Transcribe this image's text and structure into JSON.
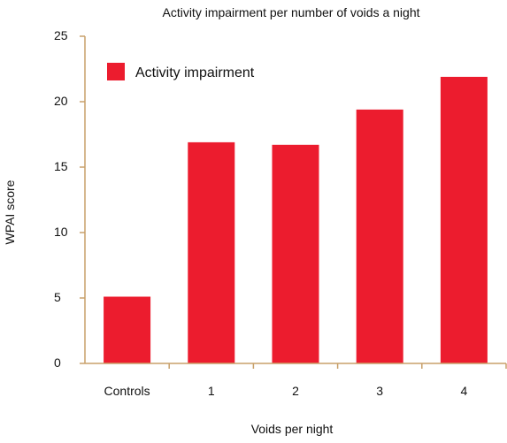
{
  "chart_data": {
    "type": "bar",
    "title": "Activity impairment per number of voids a night",
    "xlabel": "Voids per night",
    "ylabel": "WPAI score",
    "categories": [
      "Controls",
      "1",
      "2",
      "3",
      "4"
    ],
    "series": [
      {
        "name": "Activity impairment",
        "values": [
          5.1,
          16.9,
          16.7,
          19.4,
          21.9
        ],
        "color": "#ec1c2e"
      }
    ],
    "ylim": [
      0,
      25
    ],
    "yticks": [
      "0",
      "5",
      "10",
      "15",
      "20",
      "25"
    ],
    "grid": false,
    "legend_position": "top-left",
    "axis_color": "#c8a06a"
  }
}
